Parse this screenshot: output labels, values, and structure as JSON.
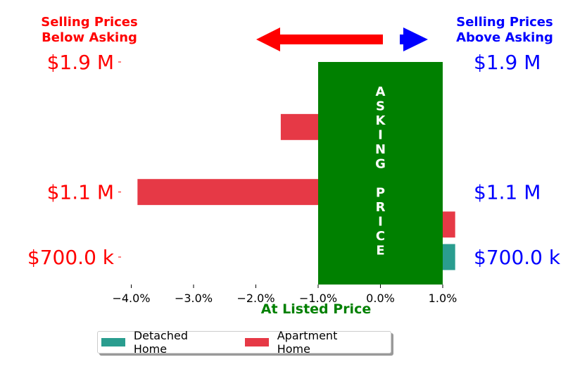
{
  "header": {
    "below_line1": "Selling Prices",
    "below_line2": "Below Asking",
    "above_line1": "Selling Prices",
    "above_line2": "Above Asking",
    "below_color": "#ff0000",
    "above_color": "#0000ff"
  },
  "legend": {
    "items": [
      {
        "label": "Detached Home",
        "color": "#2a9d8f"
      },
      {
        "label": "Apartment Home",
        "color": "#e63946"
      }
    ]
  },
  "chart_data": {
    "type": "bar",
    "orientation": "horizontal",
    "xlabel": "At Listed Price",
    "xlabel_color": "#008000",
    "xlim": [
      -4.6,
      1.3
    ],
    "xticks": [
      -4.0,
      -3.0,
      -2.0,
      -1.0,
      0.0,
      1.0
    ],
    "xtick_labels": [
      "−4.0%",
      "−3.0%",
      "−2.0%",
      "−1.0%",
      "0.0%",
      "1.0%"
    ],
    "ylim": [
      600000,
      1950000
    ],
    "yticks": [
      700000,
      1100000,
      1500000,
      1900000
    ],
    "ytick_labels_left": [
      "$700.0 k",
      "$1.1 M",
      "",
      "$1.9 M"
    ],
    "ytick_labels_right": [
      "$700.0 k",
      "$1.1 M",
      "",
      "$1.9 M"
    ],
    "asking_band": {
      "x_start": -1.0,
      "x_end": 1.0,
      "color": "#008000",
      "label": "ASKING PRICE"
    },
    "bar_height": 160000,
    "series": [
      {
        "name": "Detached Home",
        "color": "#2a9d8f",
        "points": [
          {
            "y": 700000,
            "x": 1.2
          }
        ]
      },
      {
        "name": "Apartment Home",
        "color": "#e63946",
        "points": [
          {
            "y": 900000,
            "x": 1.2
          },
          {
            "y": 1100000,
            "x": -3.9
          },
          {
            "y": 1500000,
            "x": -1.6
          }
        ]
      }
    ],
    "grid": false,
    "legend_position": "bottom"
  }
}
